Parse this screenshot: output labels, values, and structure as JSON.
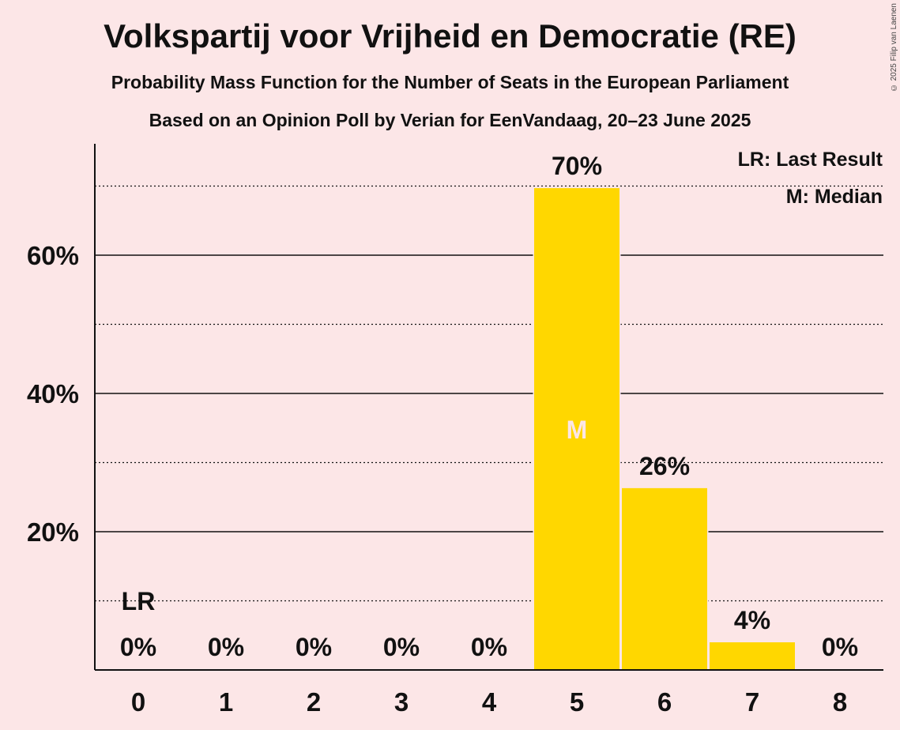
{
  "title": "Volkspartij voor Vrijheid en Democratie (RE)",
  "subtitle": "Probability Mass Function for the Number of Seats in the European Parliament",
  "subtitle2": "Based on an Opinion Poll by Verian for EenVandaag, 20–23 June 2025",
  "copyright": "© 2025 Filip van Laenen",
  "legend": {
    "last_result": "LR: Last Result",
    "median": "M: Median"
  },
  "colors": {
    "background": "#fce6e7",
    "bar": "#ffd700",
    "median_label": "#fce6e7"
  },
  "chart_data": {
    "type": "bar",
    "categories": [
      "0",
      "1",
      "2",
      "3",
      "4",
      "5",
      "6",
      "7",
      "8"
    ],
    "values": [
      0,
      0,
      0,
      0,
      0,
      69.7,
      26.3,
      4.0,
      0
    ],
    "value_labels": [
      "0%",
      "0%",
      "0%",
      "0%",
      "0%",
      "70%",
      "26%",
      "4%",
      "0%"
    ],
    "y_ticks": [
      20,
      40,
      60
    ],
    "y_tick_labels": [
      "20%",
      "40%",
      "60%"
    ],
    "y_minor_gridlines": [
      10,
      30,
      50,
      70
    ],
    "ylim": [
      0,
      76
    ],
    "last_result_seat": 0,
    "last_result_label": "LR",
    "median_seat": 5,
    "median_label": "M",
    "legend_position": "top-right",
    "grid": true
  }
}
